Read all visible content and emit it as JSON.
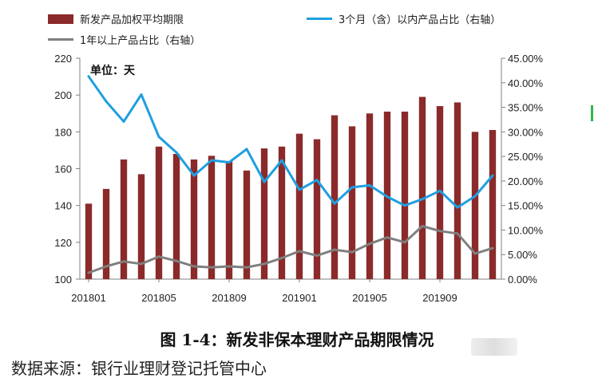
{
  "chart_data": {
    "type": "bar",
    "annotation": "单位：天",
    "caption": "图 1-4：新发非保本理财产品期限情况",
    "source": "数据来源：银行业理财登记托管中心",
    "categories": [
      "201801",
      "201802",
      "201803",
      "201804",
      "201805",
      "201806",
      "201807",
      "201808",
      "201809",
      "201810",
      "201811",
      "201812",
      "201901",
      "201902",
      "201903",
      "201904",
      "201905",
      "201906",
      "201907",
      "201908",
      "201909",
      "201910",
      "201911",
      "201912"
    ],
    "x_tick_labels": [
      "201801",
      "201805",
      "201809",
      "201901",
      "201905",
      "201909"
    ],
    "y_left": {
      "min": 100,
      "max": 220,
      "ticks": [
        "100",
        "120",
        "140",
        "160",
        "180",
        "200",
        "220"
      ]
    },
    "y_right": {
      "min": 0,
      "max": 45,
      "ticks": [
        "0.00%",
        "5.00%",
        "10.00%",
        "15.00%",
        "20.00%",
        "25.00%",
        "30.00%",
        "35.00%",
        "40.00%",
        "45.00%"
      ]
    },
    "series": [
      {
        "name": "新发产品加权平均期限",
        "type": "bar",
        "axis": "left",
        "color": "#8b2a2a",
        "values": [
          141,
          149,
          165,
          157,
          172,
          168,
          165,
          167,
          164,
          159,
          171,
          172,
          179,
          176,
          189,
          183,
          190,
          191,
          191,
          199,
          194,
          196,
          180,
          181
        ]
      },
      {
        "name": "3个月（含）以内产品占比（右轴）",
        "type": "line",
        "axis": "right",
        "color": "#1f9fe0",
        "values": [
          41.3,
          36.2,
          32.1,
          37.6,
          29.0,
          25.8,
          21.1,
          24.2,
          23.8,
          26.5,
          19.8,
          24.2,
          18.2,
          20.2,
          15.4,
          18.7,
          19.1,
          16.8,
          15.0,
          16.3,
          18.0,
          14.6,
          16.9,
          21.1
        ]
      },
      {
        "name": "1年以上产品占比（右轴）",
        "type": "line",
        "axis": "right",
        "color": "#7f7f7f",
        "values": [
          1.3,
          2.6,
          3.6,
          3.1,
          4.6,
          3.7,
          2.6,
          2.4,
          2.6,
          2.4,
          3.1,
          4.3,
          5.7,
          4.8,
          6.0,
          5.5,
          7.2,
          8.5,
          7.5,
          10.8,
          9.8,
          9.3,
          5.2,
          6.3
        ]
      }
    ]
  }
}
